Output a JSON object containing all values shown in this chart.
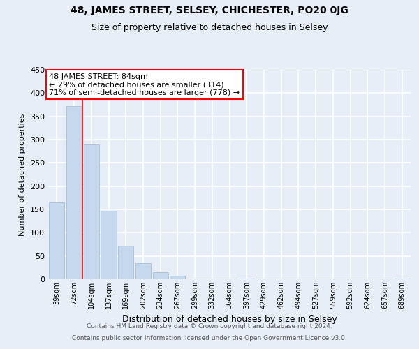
{
  "title1": "48, JAMES STREET, SELSEY, CHICHESTER, PO20 0JG",
  "title2": "Size of property relative to detached houses in Selsey",
  "xlabel": "Distribution of detached houses by size in Selsey",
  "ylabel": "Number of detached properties",
  "bar_labels": [
    "39sqm",
    "72sqm",
    "104sqm",
    "137sqm",
    "169sqm",
    "202sqm",
    "234sqm",
    "267sqm",
    "299sqm",
    "332sqm",
    "364sqm",
    "397sqm",
    "429sqm",
    "462sqm",
    "494sqm",
    "527sqm",
    "559sqm",
    "592sqm",
    "624sqm",
    "657sqm",
    "689sqm"
  ],
  "bar_values": [
    165,
    372,
    290,
    147,
    72,
    35,
    15,
    7,
    0,
    0,
    0,
    2,
    0,
    0,
    0,
    0,
    0,
    0,
    0,
    0,
    2
  ],
  "bar_color": "#c5d8ed",
  "ylim": [
    0,
    450
  ],
  "yticks": [
    0,
    50,
    100,
    150,
    200,
    250,
    300,
    350,
    400,
    450
  ],
  "red_line_x": 1.5,
  "annotation_title": "48 JAMES STREET: 84sqm",
  "annotation_line1": "← 29% of detached houses are smaller (314)",
  "annotation_line2": "71% of semi-detached houses are larger (778) →",
  "footer1": "Contains HM Land Registry data © Crown copyright and database right 2024.",
  "footer2": "Contains public sector information licensed under the Open Government Licence v3.0.",
  "bg_color": "#e8eef8"
}
